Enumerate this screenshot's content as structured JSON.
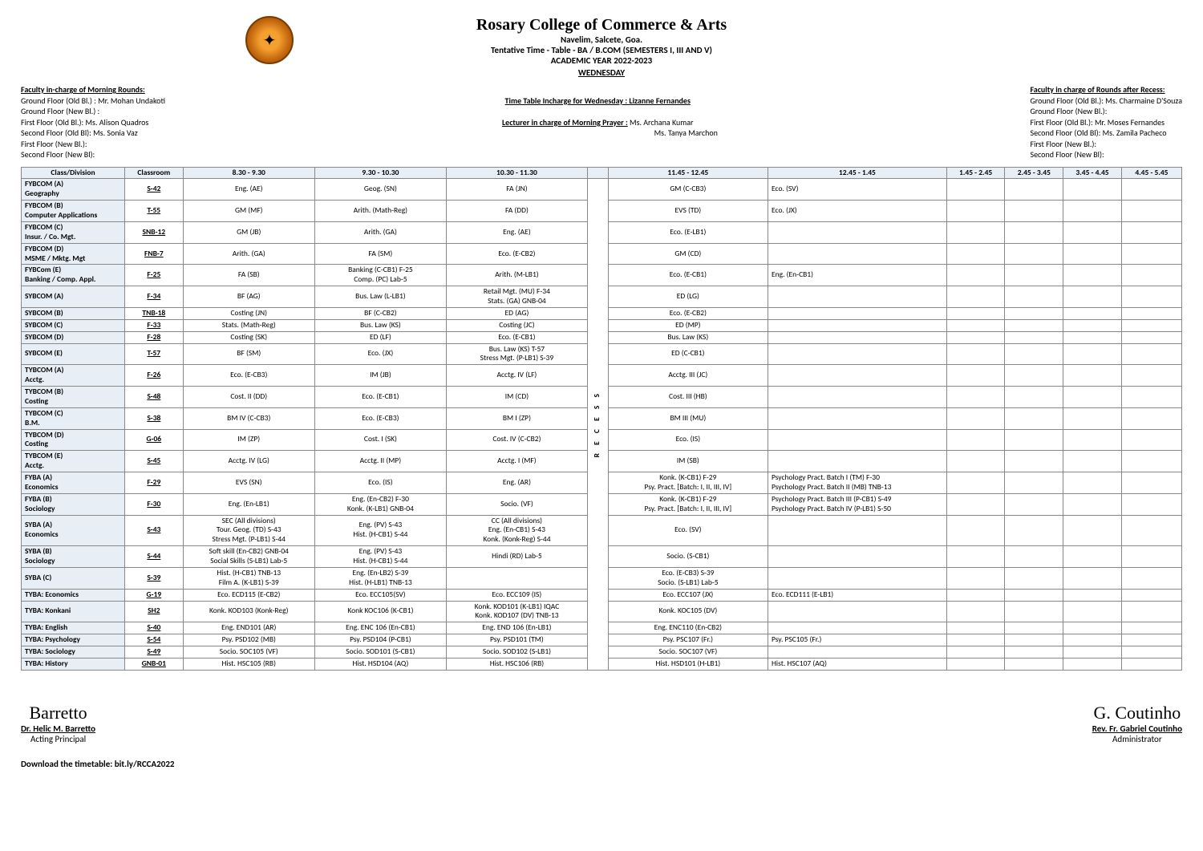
{
  "header": {
    "college": "Rosary College of Commerce & Arts",
    "addr": "Navelim, Salcete, Goa.",
    "title": "Tentative Time - Table - BA / B.COM (SEMESTERS I, III AND V)",
    "year": "ACADEMIC YEAR 2022-2023",
    "day": "WEDNESDAY"
  },
  "left": {
    "h": "Faculty in-charge of Morning Rounds:",
    "l1": "Ground Floor  (Old Bl.) :  Mr. Mohan Undakoti",
    "l2": "Ground Floor  (New Bl.) :",
    "l3": "First Floor (Old Bl.): Ms. Alison Quadros",
    "l4": "Second Floor (Old Bl):  Ms. Sonia Vaz",
    "l5": "First Floor (New Bl.):",
    "l6": "Second Floor (New Bl):"
  },
  "mid": {
    "incharge": "Time Table Incharge for Wednesday : Lizanne Fernandes",
    "prayerL": "Lecturer in charge of Morning Prayer :",
    "prayerN": " Ms. Archana Kumar",
    "prayerN2": "Ms. Tanya Marchon"
  },
  "right": {
    "h": "Faculty in charge of Rounds after Recess:",
    "l1": "Ground Floor  (Old Bl.):  Ms. Charmaine D'Souza",
    "l2": "Ground Floor  (New Bl.):",
    "l3": "First Floor (Old Bl.): Mr. Moses Fernandes",
    "l4": "Second Floor (Old Bl): Ms. Zamila Pacheco",
    "l5": "First Floor (New Bl.):",
    "l6": "Second Floor (New Bl):"
  },
  "cols": [
    "Class/Division",
    "Classroom",
    "8.30 - 9.30",
    "9.30 - 10.30",
    "10.30 - 11.30",
    "11.45 - 12.45",
    "12.45 - 1.45",
    "1.45 - 2.45",
    "2.45 - 3.45",
    "3.45 - 4.45",
    "4.45 - 5.45"
  ],
  "recess": "R E C E S S",
  "rows": [
    {
      "c": "FYBCOM (A)\nGeography",
      "r": "S-42",
      "p": [
        "Eng. (AE)",
        "Geog. (SN)",
        "FA (JN)",
        "GM (C-CB3)",
        "Eco. (SV)",
        "",
        "",
        "",
        ""
      ]
    },
    {
      "c": "FYBCOM (B)\nComputer Applications",
      "r": "T-55",
      "p": [
        "GM (MF)",
        "Arith. (Math-Reg)",
        "FA (DD)",
        "EVS (TD)",
        "Eco. (JX)",
        "",
        "",
        "",
        ""
      ]
    },
    {
      "c": "FYBCOM (C)\nInsur. / Co. Mgt.",
      "r": "SNB-12",
      "p": [
        "GM (JB)",
        "Arith. (GA)",
        "Eng. (AE)",
        "Eco. (E-LB1)",
        "",
        "",
        "",
        "",
        ""
      ]
    },
    {
      "c": "FYBCOM (D)\nMSME / Mktg. Mgt",
      "r": "FNB-7",
      "p": [
        "Arith. (GA)",
        "FA (SM)",
        "Eco. (E-CB2)",
        "GM (CD)",
        "",
        "",
        "",
        "",
        ""
      ]
    },
    {
      "c": "FYBCom (E)\nBanking / Comp. Appl.",
      "r": "F-25",
      "p": [
        "FA (SB)",
        "Banking (C-CB1) F-25\nComp. (PC) Lab-5",
        "Arith. (M-LB1)",
        "Eco. (E-CB1)",
        "Eng. (En-CB1)",
        "",
        "",
        "",
        ""
      ]
    },
    {
      "c": "SYBCOM (A)",
      "r": "F-34",
      "p": [
        "BF (AG)",
        "Bus. Law (L-LB1)",
        "Retail Mgt. (MU) F-34\nStats. (GA) GNB-04",
        "ED (LG)",
        "",
        "",
        "",
        "",
        ""
      ]
    },
    {
      "c": "SYBCOM (B)",
      "r": "TNB-18",
      "p": [
        "Costing (JN)",
        "BF (C-CB2)",
        "ED (AG)",
        "Eco. (E-CB2)",
        "",
        "",
        "",
        "",
        ""
      ]
    },
    {
      "c": "SYBCOM (C)",
      "r": "F-33",
      "p": [
        "Stats. (Math-Reg)",
        "Bus. Law (KS)",
        "Costing (JC)",
        "ED (MP)",
        "",
        "",
        "",
        "",
        ""
      ]
    },
    {
      "c": "SYBCOM (D)",
      "r": "F-28",
      "p": [
        "Costing (SK)",
        "ED (LF)",
        "Eco. (E-CB1)",
        "Bus. Law (KS)",
        "",
        "",
        "",
        "",
        ""
      ]
    },
    {
      "c": "SYBCOM (E)",
      "r": "T-57",
      "p": [
        "BF (SM)",
        "Eco. (JX)",
        "Bus. Law (KS) T-57\nStress Mgt. (P-LB1) S-39",
        "ED (C-CB1)",
        "",
        "",
        "",
        "",
        ""
      ]
    },
    {
      "c": "TYBCOM (A)\nAcctg.",
      "r": "F-26",
      "p": [
        "Eco. (E-CB3)",
        "IM (JB)",
        "Acctg. IV (LF)",
        "Acctg. III (JC)",
        "",
        "",
        "",
        "",
        ""
      ]
    },
    {
      "c": "TYBCOM (B)\nCosting",
      "r": "S-48",
      "p": [
        "Cost. II (DD)",
        "Eco. (E-CB1)",
        "IM (CD)",
        "Cost. III (HB)",
        "",
        "",
        "",
        "",
        ""
      ]
    },
    {
      "c": "TYBCOM (C)\nB.M.",
      "r": "S-38",
      "p": [
        "BM IV (C-CB3)",
        "Eco. (E-CB3)",
        "BM I (ZP)",
        "BM III (MU)",
        "",
        "",
        "",
        "",
        ""
      ]
    },
    {
      "c": "TYBCOM (D)\nCosting",
      "r": "G-06",
      "p": [
        "IM (ZP)",
        "Cost. I (SK)",
        "Cost. IV (C-CB2)",
        "Eco. (IS)",
        "",
        "",
        "",
        "",
        ""
      ]
    },
    {
      "c": "TYBCOM (E)\nAcctg.",
      "r": "S-45",
      "p": [
        "Acctg. IV (LG)",
        "Acctg. II (MP)",
        "Acctg. I (MF)",
        "IM (SB)",
        "",
        "",
        "",
        "",
        ""
      ]
    },
    {
      "c": "FYBA (A)\nEconomics",
      "r": "F-29",
      "p": [
        "EVS (SN)",
        "Eco. (IS)",
        "Eng. (AR)",
        "Konk. (K-CB1) F-29\nPsy. Pract. [Batch: I, II, III, IV]",
        "Psychology Pract. Batch I (TM) F-30\nPsychology Pract. Batch II (MB) TNB-13",
        "",
        "",
        "",
        ""
      ]
    },
    {
      "c": "FYBA (B)\nSociology",
      "r": "F-30",
      "p": [
        "Eng. (En-LB1)",
        "Eng. (En-CB2) F-30\nKonk. (K-LB1) GNB-04",
        "Socio. (VF)",
        "Konk. (K-CB1) F-29\nPsy. Pract. [Batch: I, II, III, IV]",
        "Psychology Pract. Batch III (P-CB1) S-49\nPsychology Pract. Batch IV (P-LB1) S-50",
        "",
        "",
        "",
        ""
      ]
    },
    {
      "c": "SYBA (A)\nEconomics",
      "r": "S-43",
      "p": [
        "SEC (All divisions)\nTour. Geog. (TD) S-43\nStress Mgt. (P-LB1) S-44",
        "Eng. (PV) S-43\nHist. (H-CB1) S-44",
        "CC (All divisions)\nEng. (En-CB1) S-43\nKonk. (Konk-Reg) S-44",
        "Eco. (SV)",
        "",
        "",
        "",
        "",
        ""
      ]
    },
    {
      "c": "SYBA (B)\nSociology",
      "r": "S-44",
      "p": [
        "Soft skill (En-CB2) GNB-04\nSocial Skills (S-LB1) Lab-5",
        "Eng. (PV) S-43\nHist. (H-CB1) S-44",
        "Hindi (RD) Lab-5",
        "Socio. (S-CB1)",
        "",
        "",
        "",
        "",
        ""
      ]
    },
    {
      "c": "SYBA (C)",
      "r": "S-39",
      "p": [
        "Hist. (H-CB1) TNB-13\nFilm A. (K-LB1) S-39",
        "Eng. (En-LB2) S-39\nHist. (H-LB1) TNB-13",
        "",
        "Eco. (E-CB3) S-39\nSocio. (S-LB1) Lab-5",
        "",
        "",
        "",
        "",
        ""
      ]
    },
    {
      "c": "TYBA: Economics",
      "r": "G-19",
      "p": [
        "Eco. ECD115 (E-CB2)",
        "Eco. ECC105(SV)",
        "Eco. ECC109 (IS)",
        "Eco. ECC107 (JX)",
        "Eco. ECD111 (E-LB1)",
        "",
        "",
        "",
        ""
      ]
    },
    {
      "c": "TYBA: Konkani",
      "r": "SH2",
      "p": [
        "Konk. KOD103 (Konk-Reg)",
        "Konk KOC106 (K-CB1)",
        "Konk. KOD101 (K-LB1) IQAC\nKonk. KOD107 (DV) TNB-13",
        "Konk. KOC105 (DV)",
        "",
        "",
        "",
        "",
        ""
      ]
    },
    {
      "c": "TYBA: English",
      "r": "S-40",
      "p": [
        "Eng. END101 (AR)",
        "Eng. ENC 106 (En-CB1)",
        "Eng. END 106 (En-LB1)",
        "Eng. ENC110 (En-CB2)",
        "",
        "",
        "",
        "",
        ""
      ]
    },
    {
      "c": "TYBA: Psychology",
      "r": "S-54",
      "p": [
        "Psy. PSD102 (MB)",
        "Psy. PSD104 (P-CB1)",
        "Psy. PSD101 (TM)",
        "Psy. PSC107 (Fr.)",
        "Psy. PSC105 (Fr.)",
        "",
        "",
        "",
        ""
      ]
    },
    {
      "c": "TYBA: Sociology",
      "r": "S-49",
      "p": [
        "Socio. SOC105 (VF)",
        "Socio. SOD101 (S-CB1)",
        "Socio. SOD102 (S-LB1)",
        "Socio. SOC107 (VF)",
        "",
        "",
        "",
        "",
        ""
      ]
    },
    {
      "c": "TYBA: History",
      "r": "GNB-01",
      "p": [
        "Hist. HSC105 (RB)",
        "Hist. HSD104 (AQ)",
        "Hist. HSC106 (RB)",
        "Hist.  HSD101 (H-LB1)",
        "Hist.  HSC107 (AQ)",
        "",
        "",
        "",
        ""
      ]
    }
  ],
  "sig": {
    "l_hand": "Barretto",
    "l_name": "Dr. Helic M. Barretto",
    "l_role": "Acting Principal",
    "r_hand": "G. Coutinho",
    "r_name": "Rev. Fr. Gabriel Coutinho",
    "r_role": "Administrator"
  },
  "dl": "Download the timetable: bit.ly/RCCA2022"
}
